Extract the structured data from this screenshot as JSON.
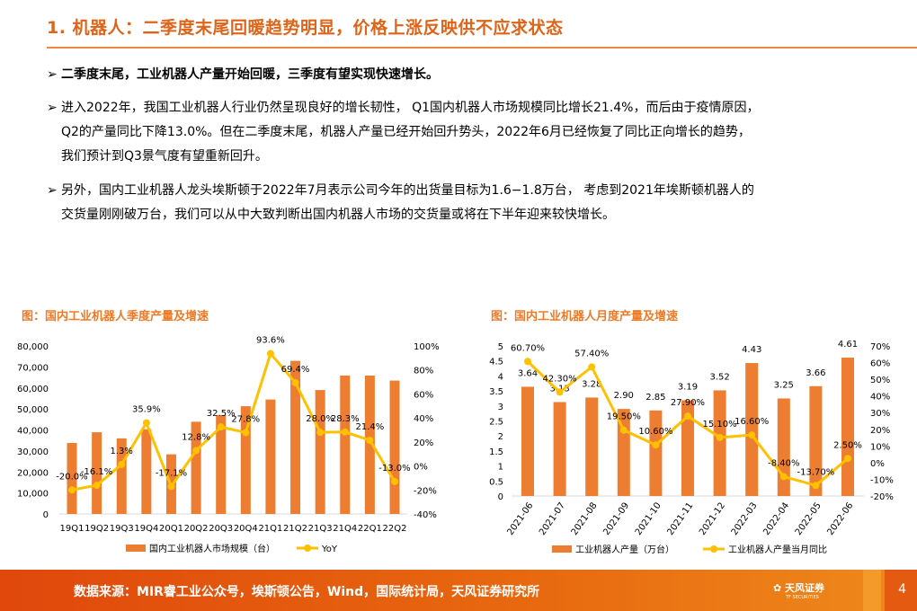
{
  "header": {
    "title": "1. 机器人：二季度末尾回暖趋势明显，价格上涨反映供不应求状态"
  },
  "bullets": [
    {
      "arrow": "➢",
      "lines": [
        "二季度末尾，工业机器人产量开始回暖，三季度有望实现快速增长。"
      ]
    },
    {
      "arrow": "➢",
      "lines": [
        "进入2022年，我国工业机器人行业仍然呈现良好的增长韧性， Q1国内机器人市场规模同比增长21.4%，而后由于疫情原因，",
        "Q2的产量同比下降13.0%。但在二季度末尾，机器人产量已经开始回升势头，2022年6月已经恢复了同比正向增长的趋势，",
        "我们预计到Q3景气度有望重新回升。"
      ]
    },
    {
      "arrow": "➢",
      "lines": [
        "另外，国内工业机器人龙头埃斯顿于2022年7月表示公司今年的出货量目标为1.6−1.8万台， 考虑到2021年埃斯顿机器人的",
        "交货量刚刚破万台，我们可以从中大致判断出国内机器人市场的交货量或将在下半年迎来较快增长。"
      ]
    }
  ],
  "chart_data": [
    {
      "type": "bar+line",
      "title": "图：国内工业机器人季度产量及增速",
      "categories": [
        "19Q1",
        "19Q2",
        "19Q3",
        "19Q4",
        "20Q1",
        "20Q2",
        "20Q3",
        "20Q4",
        "21Q1",
        "21Q2",
        "21Q3",
        "21Q4",
        "22Q1",
        "22Q2"
      ],
      "series": [
        {
          "name": "国内工业机器人市场规模（台）",
          "type": "bar",
          "axis": "left",
          "color": "#ed7d31",
          "values": [
            33800,
            38900,
            36000,
            40300,
            28400,
            43900,
            47000,
            51300,
            54500,
            72900,
            59000,
            65900,
            65900,
            63500
          ]
        },
        {
          "name": "YoY",
          "type": "line",
          "axis": "right",
          "color": "#ffc000",
          "values": [
            -20.0,
            -16.1,
            1.3,
            35.9,
            -17.1,
            12.8,
            32.5,
            27.8,
            93.6,
            69.4,
            28.0,
            28.3,
            21.4,
            -13.0
          ],
          "labels": [
            "-20.0%",
            "-16.1%",
            "1.3%",
            "35.9%",
            "-17.1%",
            "12.8%",
            "32.5%",
            "27.8%",
            "93.6%",
            "69.4%",
            "28.0%",
            "28.3%",
            "21.4%",
            "-13.0%"
          ]
        }
      ],
      "left_ylim": [
        0,
        80000
      ],
      "left_ticks": [
        "0",
        "10,000",
        "20,000",
        "30,000",
        "40,000",
        "50,000",
        "60,000",
        "70,000",
        "80,000"
      ],
      "right_ylim": [
        -40,
        100
      ],
      "right_ticks": [
        "-40%",
        "-20%",
        "0%",
        "20%",
        "40%",
        "60%",
        "80%",
        "100%"
      ],
      "grid": false,
      "legend": "bottom"
    },
    {
      "type": "bar+line",
      "title": "图：国内工业机器人月度产量及增速",
      "categories": [
        "2021-06",
        "2021-07",
        "2021-08",
        "2021-09",
        "2021-10",
        "2021-11",
        "2021-12",
        "2022-03",
        "2022-04",
        "2022-05",
        "2022-06"
      ],
      "series": [
        {
          "name": "工业机器人产量（万台）",
          "type": "bar",
          "axis": "left",
          "color": "#ed7d31",
          "values": [
            3.64,
            3.13,
            3.28,
            2.9,
            2.85,
            3.19,
            3.52,
            4.43,
            3.25,
            3.66,
            4.61
          ],
          "labels": [
            "3.64",
            "3.13",
            "3.28",
            "2.90",
            "2.85",
            "3.19",
            "3.52",
            "4.43",
            "3.25",
            "3.66",
            "4.61"
          ]
        },
        {
          "name": "工业机器人产量当月同比",
          "type": "line",
          "axis": "right",
          "color": "#ffc000",
          "values": [
            60.7,
            42.3,
            57.4,
            19.5,
            10.6,
            27.9,
            15.1,
            16.6,
            -8.4,
            -13.7,
            2.5
          ],
          "labels": [
            "60.70%",
            "42.30%",
            "57.40%",
            "19.50%",
            "10.60%",
            "27.90%",
            "15.10%",
            "16.60%",
            "-8.40%",
            "-13.70%",
            "2.50%"
          ]
        }
      ],
      "left_ylim": [
        0,
        5
      ],
      "left_ticks": [
        "0",
        "0.5",
        "1",
        "1.5",
        "2",
        "2.5",
        "3",
        "3.5",
        "4",
        "4.5",
        "5"
      ],
      "right_ylim": [
        -20,
        70
      ],
      "right_ticks": [
        "-20%",
        "-10%",
        "0%",
        "10%",
        "20%",
        "30%",
        "40%",
        "50%",
        "60%",
        "70%"
      ],
      "grid": false,
      "legend": "bottom"
    }
  ],
  "footer": {
    "source": "数据来源：MIR睿工业公众号，埃斯顿公告，Wind，国际统计局，天风证券研究所",
    "logo_text": "天风证券",
    "logo_sub": "TF SECURITIES",
    "page": "4"
  }
}
